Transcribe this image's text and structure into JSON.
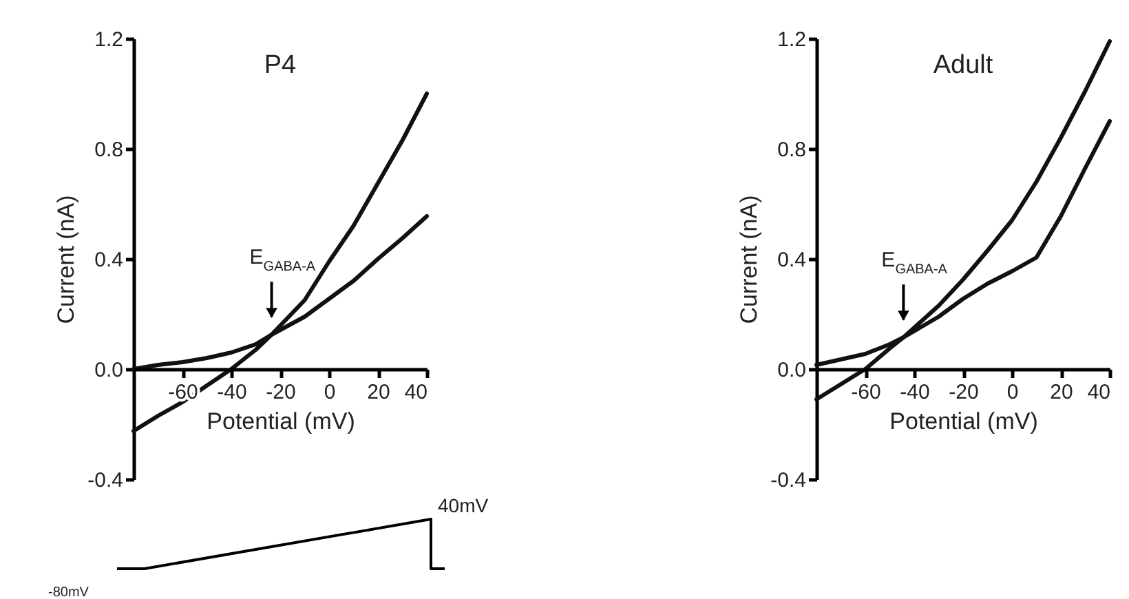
{
  "chart_data": [
    {
      "type": "line",
      "title": "P4",
      "xlabel": "Potential (mV)",
      "ylabel": "Current (nA)",
      "xlim": [
        -80,
        40
      ],
      "xticks": [
        -60,
        -40,
        -20,
        0,
        20,
        40
      ],
      "ylim": [
        -0.4,
        1.2
      ],
      "yticks": [
        {
          "value": -0.4,
          "label": "-0.4"
        },
        {
          "value": 0,
          "label": "0.0"
        },
        {
          "value": 0.4,
          "label": "0.4"
        },
        {
          "value": 0.8,
          "label": "0.8"
        },
        {
          "value": 1.2,
          "label": "1.2"
        }
      ],
      "series": [
        {
          "color": "#111111",
          "x": [
            -80,
            -70,
            -60,
            -50,
            -40,
            -30,
            -23.5,
            -10,
            0,
            10,
            20,
            30,
            40
          ],
          "values": [
            -0.225,
            -0.17,
            -0.12,
            -0.06,
            0.0,
            0.07,
            0.125,
            0.25,
            0.39,
            0.52,
            0.675,
            0.83,
            1.0
          ]
        },
        {
          "color": "#111111",
          "x": [
            -80,
            -70,
            -60,
            -50,
            -40,
            -30,
            -23.5,
            -10,
            0,
            10,
            20,
            30,
            40
          ],
          "values": [
            0.0,
            0.015,
            0.025,
            0.04,
            0.06,
            0.09,
            0.125,
            0.19,
            0.255,
            0.32,
            0.4,
            0.475,
            0.555
          ]
        }
      ],
      "annotations": [
        {
          "text": "E$_{GABA-A}$",
          "x": -23.5,
          "y": 0.125
        },
        "40mV",
        "-80mV"
      ]
    },
    {
      "type": "line",
      "title": "Adult",
      "xlabel": "Potential (mV)",
      "ylabel": "Current (nA)",
      "xlim": [
        -80,
        40
      ],
      "xticks": [
        -60,
        -40,
        -20,
        0,
        20,
        40
      ],
      "ylim": [
        -0.4,
        1.2
      ],
      "yticks": [
        {
          "value": -0.4,
          "label": "-0.4"
        },
        {
          "value": 0,
          "label": "0.0"
        },
        {
          "value": 0.4,
          "label": "0.4"
        },
        {
          "value": 0.8,
          "label": "0.8"
        },
        {
          "value": 1.2,
          "label": "1.2"
        }
      ],
      "series": [
        {
          "color": "#111111",
          "x": [
            -80,
            -70,
            -60,
            -50,
            -44.4,
            -30,
            -20,
            -10,
            0,
            10,
            20,
            30,
            40
          ],
          "values": [
            -0.11,
            -0.055,
            0.0,
            0.075,
            0.115,
            0.23,
            0.325,
            0.43,
            0.54,
            0.68,
            0.84,
            1.01,
            1.19
          ]
        },
        {
          "color": "#111111",
          "x": [
            -80,
            -70,
            -60,
            -50,
            -44.4,
            -30,
            -20,
            -10,
            0,
            10,
            20,
            30,
            40
          ],
          "values": [
            0.015,
            0.035,
            0.055,
            0.09,
            0.115,
            0.19,
            0.255,
            0.31,
            0.355,
            0.405,
            0.555,
            0.73,
            0.9
          ]
        }
      ],
      "annotations": [
        {
          "text": "E$_{GABA-A}$",
          "x": -44.4,
          "y": 0.115
        }
      ]
    }
  ]
}
